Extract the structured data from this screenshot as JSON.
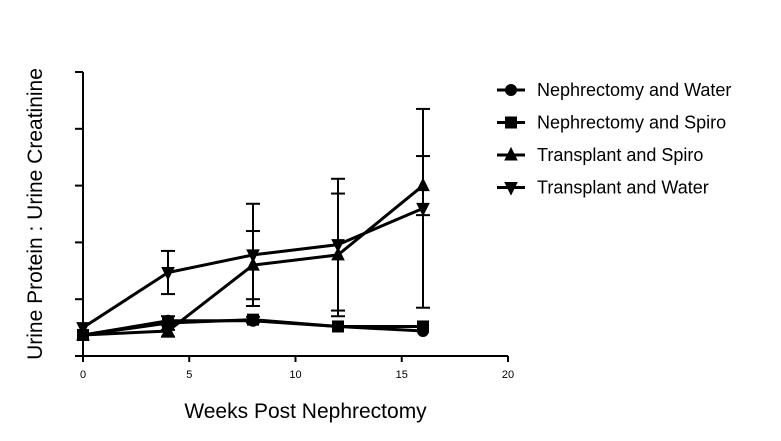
{
  "chart_data": {
    "type": "line",
    "title": "",
    "xlabel": "Weeks Post Nephrectomy",
    "ylabel": "Urine Protein : Urine Creatinine",
    "xlim": [
      0,
      20
    ],
    "ylim": [
      0,
      5
    ],
    "x_ticks": [
      0,
      5,
      10,
      15,
      20
    ],
    "y_ticks": [
      0,
      1,
      2,
      3,
      4,
      5
    ],
    "y_tick_labels_shown": false,
    "grid": false,
    "legend_position": "top-right",
    "series": [
      {
        "name": "Nephrectomy and Water",
        "marker": "circle",
        "x": [
          0,
          4,
          8,
          12,
          16
        ],
        "y": [
          0.37,
          0.62,
          0.62,
          0.52,
          0.44
        ],
        "err": [
          0,
          0,
          0,
          0,
          0
        ]
      },
      {
        "name": "Nephrectomy and Spiro",
        "marker": "square",
        "x": [
          0,
          4,
          8,
          12,
          16
        ],
        "y": [
          0.37,
          0.58,
          0.64,
          0.52,
          0.52
        ],
        "err": [
          0,
          0.12,
          0.05,
          0,
          0
        ]
      },
      {
        "name": "Transplant and Spiro",
        "marker": "triangle-up",
        "x": [
          0,
          4,
          8,
          12,
          16
        ],
        "y": [
          0.37,
          0.44,
          1.6,
          1.78,
          3.0
        ],
        "err": [
          0,
          0.1,
          0.6,
          1.08,
          0.52
        ]
      },
      {
        "name": "Transplant and Water",
        "marker": "triangle-down",
        "x": [
          0,
          4,
          8,
          12,
          16
        ],
        "y": [
          0.5,
          1.47,
          1.78,
          1.96,
          2.6
        ],
        "err": [
          0,
          0.38,
          0.9,
          1.16,
          1.75
        ]
      }
    ]
  }
}
